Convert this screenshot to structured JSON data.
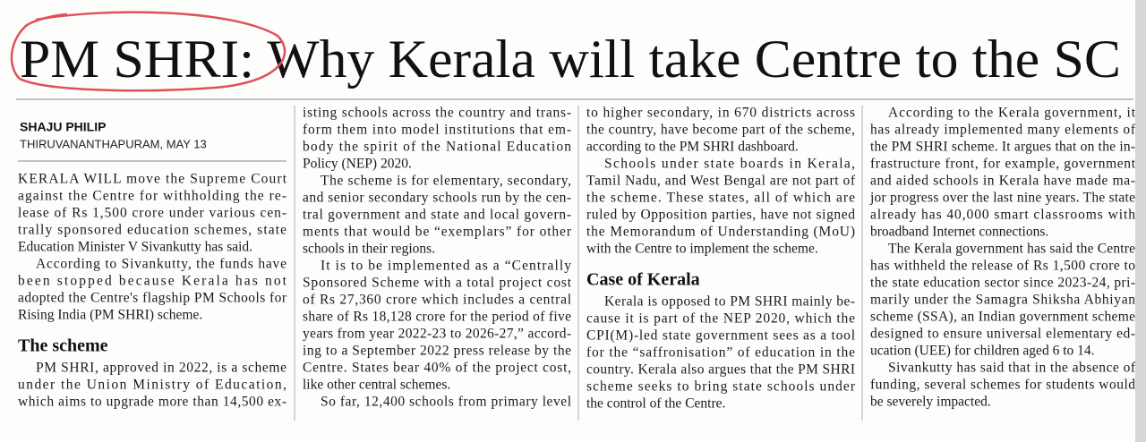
{
  "headline": "PM SHRI: Why Kerala will take Centre to the SC",
  "byline": {
    "author": "SHAJU PHILIP",
    "dateline": "THIRUVANANTHAPURAM, MAY 13"
  },
  "columns": [
    {
      "blocks": [
        {
          "lines": [
            "KERALA WILL move the Supreme Court",
            "against the Centre for withholding the re-",
            "lease of Rs 1,500 crore under various cen-",
            "trally sponsored education schemes, state",
            "Education Minister V Sivankutty has said."
          ]
        },
        {
          "lines": [
            "According to Sivankutty, the funds have",
            "been stopped because Kerala has not",
            "adopted the Centre's flagship PM Schools for",
            "Rising India (PM SHRI) scheme."
          ]
        },
        {
          "heading": "The scheme"
        },
        {
          "lines": [
            "PM SHRI, approved in 2022, is a scheme",
            "under the Union Ministry of Education,",
            "which aims to upgrade more than 14,500 ex-"
          ]
        }
      ]
    },
    {
      "blocks": [
        {
          "lines": [
            "isting schools across the country and trans-",
            "form them into model institutions that em-",
            "body the spirit of the National Education",
            "Policy (NEP) 2020."
          ]
        },
        {
          "lines": [
            "The scheme is for elementary, secondary,",
            "and senior secondary schools run by the cen-",
            "tral government and state and local govern-",
            "ments that would be “exemplars” for other",
            "schools in their regions."
          ]
        },
        {
          "lines": [
            "It is to be implemented as a “Centrally",
            "Sponsored Scheme with a total project cost",
            "of Rs 27,360 crore which includes a central",
            "share of Rs 18,128 crore for the period of five",
            "years from year 2022-23 to 2026-27,” accord-",
            "ing to a September 2022 press release by the",
            "Centre. States bear 40% of the project cost,",
            "like other central schemes."
          ]
        },
        {
          "lines": [
            "So far, 12,400 schools from primary level"
          ]
        }
      ]
    },
    {
      "blocks": [
        {
          "lines": [
            "to higher secondary, in 670 districts across",
            "the country, have become part of the scheme,",
            "according to the PM SHRI dashboard."
          ]
        },
        {
          "lines": [
            "Schools under state boards in Kerala,",
            "Tamil Nadu, and West Bengal are not part of",
            "the scheme. These states, all of which are",
            "ruled by Opposition parties, have not signed",
            "the Memorandum of Understanding (MoU)",
            "with the Centre to implement the scheme."
          ]
        },
        {
          "heading": "Case of Kerala"
        },
        {
          "lines": [
            "Kerala is opposed to PM SHRI mainly be-",
            "cause it is part of the NEP 2020, which the",
            "CPI(M)-led state government sees as a tool",
            "for the “saffronisation” of education in the",
            "country. Kerala also argues that the PM SHRI",
            "scheme seeks to bring state schools under",
            "the control of the Centre."
          ]
        }
      ]
    },
    {
      "blocks": [
        {
          "lines": [
            "According to the Kerala government, it",
            "has already implemented many elements of",
            "the PM SHRI scheme. It argues that on the in-",
            "frastructure front, for example, government",
            "and aided schools in Kerala have made ma-",
            "jor progress over the last nine years. The state",
            "already has 40,000 smart classrooms with",
            "broadband Internet connections."
          ]
        },
        {
          "lines": [
            "The Kerala government has said the Centre",
            "has withheld the release of Rs 1,500 crore to",
            "the state education sector since 2023-24, pri-",
            "marily under the Samagra Shiksha Abhiyan",
            "scheme (SSA), an Indian government scheme",
            "designed to ensure universal elementary ed-",
            "ucation (UEE) for children aged 6 to 14."
          ]
        },
        {
          "lines": [
            "Sivankutty has said that in the absence of",
            "funding, several schemes for students would",
            "be severely impacted."
          ]
        }
      ]
    }
  ]
}
